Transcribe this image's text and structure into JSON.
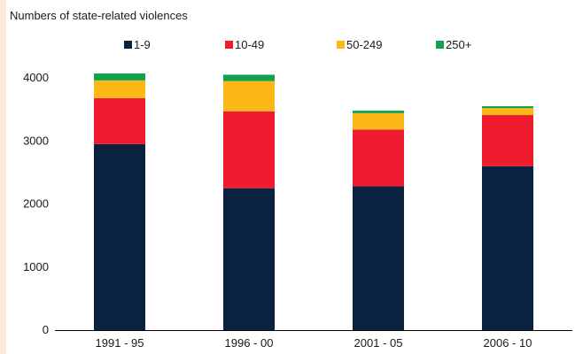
{
  "chart_data": {
    "type": "bar",
    "stacked": true,
    "title": "Numbers of state-related violences",
    "categories": [
      "1991 - 95",
      "1996 - 00",
      "2001 - 05",
      "2006 - 10"
    ],
    "series": [
      {
        "name": "1-9",
        "color": "#0a2240",
        "values": [
          2950,
          2250,
          2280,
          2600
        ]
      },
      {
        "name": "10-49",
        "color": "#ee1c2e",
        "values": [
          730,
          1220,
          900,
          810
        ]
      },
      {
        "name": "50-249",
        "color": "#fbb817",
        "values": [
          280,
          480,
          260,
          110
        ]
      },
      {
        "name": "250+",
        "color": "#12a150",
        "values": [
          110,
          100,
          40,
          30
        ]
      }
    ],
    "yticks": [
      "0",
      "1000",
      "2000",
      "3000",
      "4000"
    ],
    "ylim": [
      0,
      4000
    ],
    "grid": false,
    "legend_position": "top"
  }
}
